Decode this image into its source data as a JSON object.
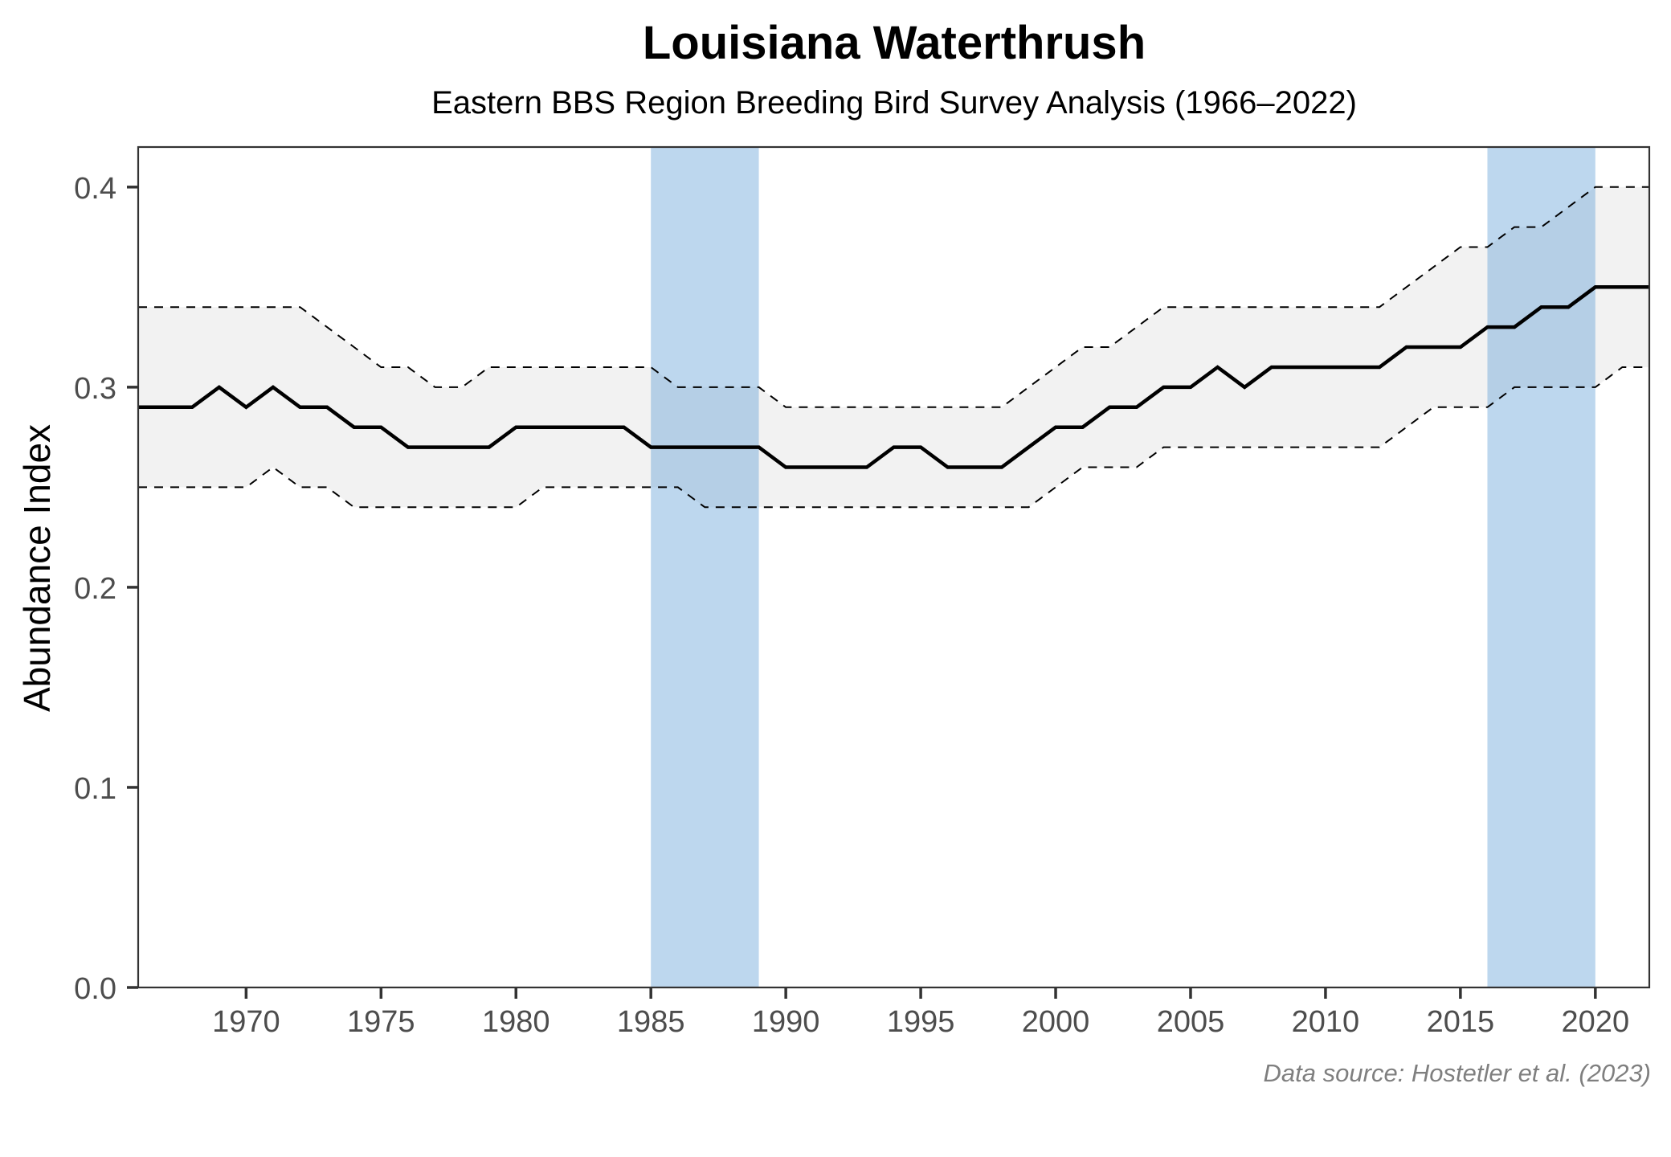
{
  "chart_data": {
    "type": "line",
    "title": "Louisiana Waterthrush",
    "subtitle": "Eastern BBS Region Breeding Bird Survey Analysis (1966–2022)",
    "xlabel": "",
    "ylabel": "Abundance Index",
    "caption": "Data source: Hostetler et al. (2023)",
    "xlim": [
      1966,
      2022
    ],
    "ylim": [
      0,
      0.42
    ],
    "x_ticks": [
      1970,
      1975,
      1980,
      1985,
      1990,
      1995,
      2000,
      2005,
      2010,
      2015,
      2020
    ],
    "x_tick_labels": [
      "1970",
      "1975",
      "1980",
      "1985",
      "1990",
      "1995",
      "2000",
      "2005",
      "2010",
      "2015",
      "2020"
    ],
    "y_ticks": [
      0.0,
      0.1,
      0.2,
      0.3,
      0.4
    ],
    "y_tick_labels": [
      "0.0",
      "0.1",
      "0.2",
      "0.3",
      "0.4"
    ],
    "grid": false,
    "highlight_periods": [
      {
        "start": 1985,
        "end": 1989
      },
      {
        "start": 2016,
        "end": 2020
      }
    ],
    "x": [
      1966,
      1967,
      1968,
      1969,
      1970,
      1971,
      1972,
      1973,
      1974,
      1975,
      1976,
      1977,
      1978,
      1979,
      1980,
      1981,
      1982,
      1983,
      1984,
      1985,
      1986,
      1987,
      1988,
      1989,
      1990,
      1991,
      1992,
      1993,
      1994,
      1995,
      1996,
      1997,
      1998,
      1999,
      2000,
      2001,
      2002,
      2003,
      2004,
      2005,
      2006,
      2007,
      2008,
      2009,
      2010,
      2011,
      2012,
      2013,
      2014,
      2015,
      2016,
      2017,
      2018,
      2019,
      2020,
      2021,
      2022
    ],
    "series": [
      {
        "name": "Abundance Index",
        "style": "solid",
        "values": [
          0.29,
          0.29,
          0.29,
          0.3,
          0.29,
          0.3,
          0.29,
          0.29,
          0.28,
          0.28,
          0.27,
          0.27,
          0.27,
          0.27,
          0.28,
          0.28,
          0.28,
          0.28,
          0.28,
          0.27,
          0.27,
          0.27,
          0.27,
          0.27,
          0.26,
          0.26,
          0.26,
          0.26,
          0.27,
          0.27,
          0.26,
          0.26,
          0.26,
          0.27,
          0.28,
          0.28,
          0.29,
          0.29,
          0.3,
          0.3,
          0.31,
          0.3,
          0.31,
          0.31,
          0.31,
          0.31,
          0.31,
          0.32,
          0.32,
          0.32,
          0.33,
          0.33,
          0.34,
          0.34,
          0.35,
          0.35,
          0.35
        ]
      },
      {
        "name": "Upper credible interval",
        "style": "dashed",
        "values": [
          0.34,
          0.34,
          0.34,
          0.34,
          0.34,
          0.34,
          0.34,
          0.33,
          0.32,
          0.31,
          0.31,
          0.3,
          0.3,
          0.31,
          0.31,
          0.31,
          0.31,
          0.31,
          0.31,
          0.31,
          0.3,
          0.3,
          0.3,
          0.3,
          0.29,
          0.29,
          0.29,
          0.29,
          0.29,
          0.29,
          0.29,
          0.29,
          0.29,
          0.3,
          0.31,
          0.32,
          0.32,
          0.33,
          0.34,
          0.34,
          0.34,
          0.34,
          0.34,
          0.34,
          0.34,
          0.34,
          0.34,
          0.35,
          0.36,
          0.37,
          0.37,
          0.38,
          0.38,
          0.39,
          0.4,
          0.4,
          0.4
        ]
      },
      {
        "name": "Lower credible interval",
        "style": "dashed",
        "values": [
          0.25,
          0.25,
          0.25,
          0.25,
          0.25,
          0.26,
          0.25,
          0.25,
          0.24,
          0.24,
          0.24,
          0.24,
          0.24,
          0.24,
          0.24,
          0.25,
          0.25,
          0.25,
          0.25,
          0.25,
          0.25,
          0.24,
          0.24,
          0.24,
          0.24,
          0.24,
          0.24,
          0.24,
          0.24,
          0.24,
          0.24,
          0.24,
          0.24,
          0.24,
          0.25,
          0.26,
          0.26,
          0.26,
          0.27,
          0.27,
          0.27,
          0.27,
          0.27,
          0.27,
          0.27,
          0.27,
          0.27,
          0.28,
          0.29,
          0.29,
          0.29,
          0.3,
          0.3,
          0.3,
          0.3,
          0.31,
          0.31
        ]
      }
    ],
    "colors": {
      "line": "#000000",
      "ribbon": "#f2f2f2",
      "highlight": "#5b9bd5",
      "axis": "#333333",
      "tick_text": "#4d4d4d",
      "caption": "#7f7f7f"
    }
  }
}
